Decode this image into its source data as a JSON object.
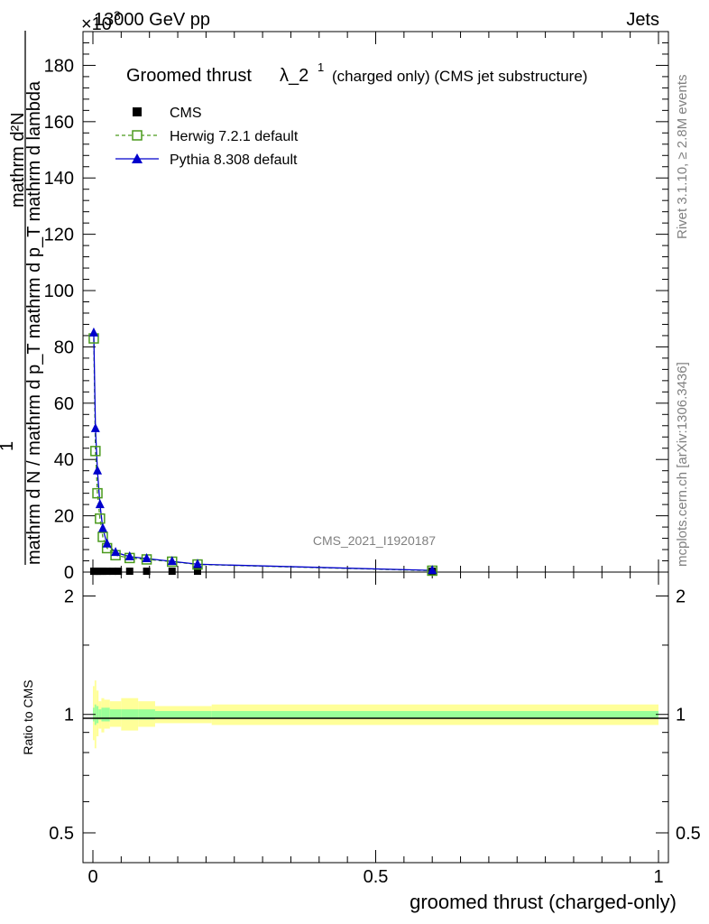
{
  "header": {
    "energy": "13000 GeV pp",
    "exponent": "×10",
    "exponent_power": "3",
    "process": "Jets"
  },
  "side_labels": {
    "rivet": "Rivet 3.1.10, ≥ 2.8M events",
    "mcplots": "mcplots.cern.ch [arXiv:1306.3436]"
  },
  "watermark": "CMS_2021_I1920187",
  "main_plot": {
    "title_main": "Groomed thrust",
    "title_lambda": "λ_2",
    "title_sup": "1",
    "title_suffix": "(charged only) (CMS jet substructure)",
    "ylabel_numerator": "mathrm d²N",
    "ylabel_denominator": "mathrm d N / mathrm d p_T mathrm d p_T mathrm d lambda",
    "ylabel_one": "1",
    "yticks": [
      "0",
      "20",
      "40",
      "60",
      "80",
      "100",
      "120",
      "140",
      "160",
      "180"
    ]
  },
  "legend": [
    {
      "label": "CMS",
      "color": "#000000",
      "marker": "square-filled"
    },
    {
      "label": "Herwig 7.2.1 default",
      "color": "#4a9a1c",
      "marker": "square-open"
    },
    {
      "label": "Pythia 8.308 default",
      "color": "#0000cc",
      "marker": "triangle-filled"
    }
  ],
  "ratio_plot": {
    "ylabel": "Ratio to CMS",
    "yticks": [
      "0.5",
      "1",
      "2"
    ]
  },
  "xaxis": {
    "label": "groomed thrust (charged-only)",
    "ticks": [
      "0",
      "0.5",
      "1"
    ]
  },
  "chart_data": {
    "type": "line",
    "x_range": [
      0,
      1
    ],
    "y_range_main": [
      0,
      192000
    ],
    "y_range_ratio": [
      0.42,
      2.3
    ],
    "ratio_log_scale": true,
    "series": [
      {
        "name": "CMS",
        "x": [
          0.0015,
          0.0045,
          0.008,
          0.0125,
          0.0175,
          0.025,
          0.035,
          0.045,
          0.065,
          0.095,
          0.14,
          0.185,
          0.6
        ],
        "values": [
          300,
          300,
          300,
          300,
          300,
          300,
          300,
          300,
          300,
          300,
          300,
          300,
          300
        ]
      },
      {
        "name": "Herwig 7.2.1 default",
        "x": [
          0.0015,
          0.0045,
          0.008,
          0.0125,
          0.0175,
          0.025,
          0.04,
          0.065,
          0.095,
          0.14,
          0.185,
          0.6
        ],
        "values": [
          83000,
          43000,
          28000,
          19000,
          12500,
          8500,
          6000,
          5000,
          4500,
          3700,
          2700,
          500
        ]
      },
      {
        "name": "Pythia 8.308 default",
        "x": [
          0.0015,
          0.0045,
          0.008,
          0.0125,
          0.0175,
          0.025,
          0.04,
          0.065,
          0.095,
          0.14,
          0.185,
          0.6
        ],
        "values": [
          85000,
          51000,
          36000,
          24000,
          15500,
          10000,
          7000,
          5500,
          4800,
          3800,
          2800,
          600
        ]
      }
    ],
    "ratio_bands": [
      {
        "x0": 0.0,
        "x1": 0.003,
        "inner": [
          0.96,
          1.04
        ],
        "outer": [
          0.86,
          1.18
        ]
      },
      {
        "x0": 0.003,
        "x1": 0.006,
        "inner": [
          0.94,
          1.06
        ],
        "outer": [
          0.82,
          1.22
        ]
      },
      {
        "x0": 0.006,
        "x1": 0.01,
        "inner": [
          0.95,
          1.05
        ],
        "outer": [
          0.88,
          1.15
        ]
      },
      {
        "x0": 0.01,
        "x1": 0.015,
        "inner": [
          0.97,
          1.03
        ],
        "outer": [
          0.92,
          1.08
        ]
      },
      {
        "x0": 0.015,
        "x1": 0.02,
        "inner": [
          0.96,
          1.04
        ],
        "outer": [
          0.9,
          1.1
        ]
      },
      {
        "x0": 0.02,
        "x1": 0.03,
        "inner": [
          0.96,
          1.04
        ],
        "outer": [
          0.92,
          1.09
        ]
      },
      {
        "x0": 0.03,
        "x1": 0.05,
        "inner": [
          0.97,
          1.03
        ],
        "outer": [
          0.93,
          1.08
        ]
      },
      {
        "x0": 0.05,
        "x1": 0.08,
        "inner": [
          0.97,
          1.03
        ],
        "outer": [
          0.91,
          1.1
        ]
      },
      {
        "x0": 0.08,
        "x1": 0.11,
        "inner": [
          0.97,
          1.03
        ],
        "outer": [
          0.93,
          1.08
        ]
      },
      {
        "x0": 0.11,
        "x1": 0.21,
        "inner": [
          0.98,
          1.02
        ],
        "outer": [
          0.95,
          1.05
        ]
      },
      {
        "x0": 0.21,
        "x1": 1.0,
        "inner": [
          0.98,
          1.02
        ],
        "outer": [
          0.94,
          1.06
        ]
      }
    ]
  }
}
